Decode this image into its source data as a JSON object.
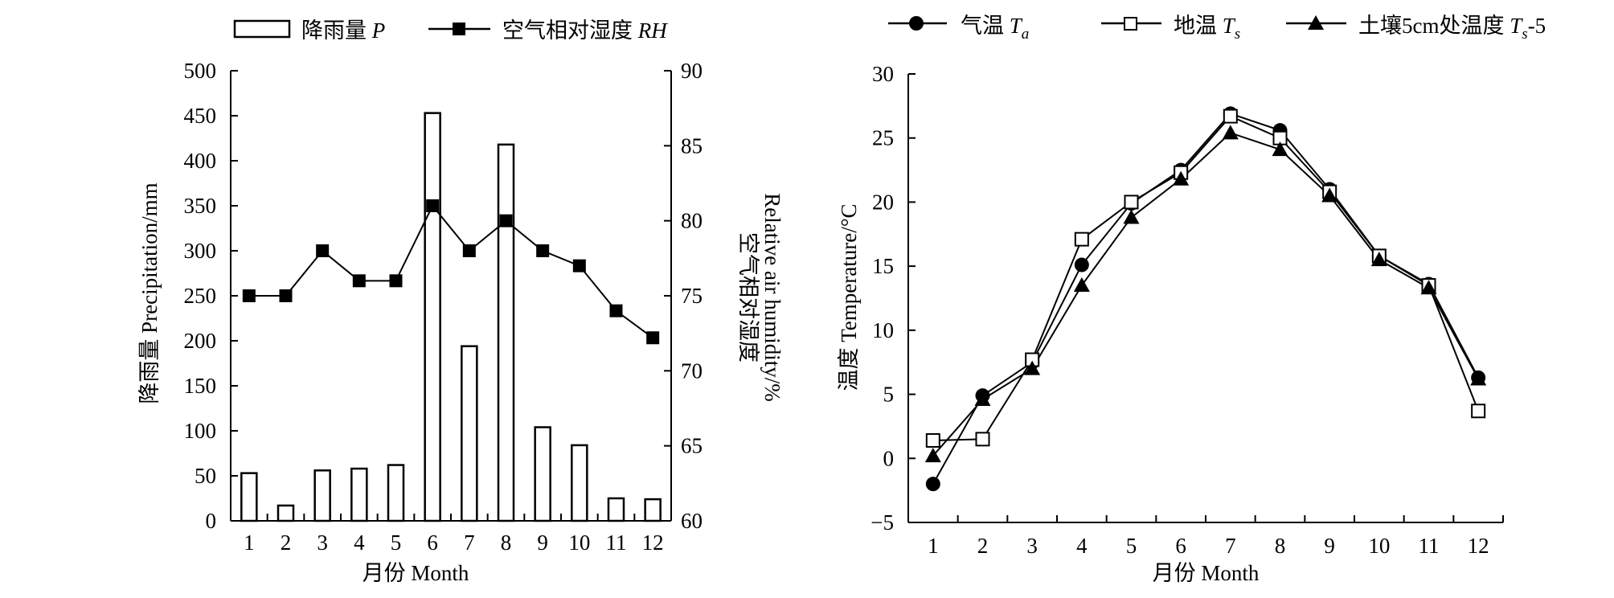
{
  "chart_data": [
    {
      "type": "bar",
      "x": [
        1,
        2,
        3,
        4,
        5,
        6,
        7,
        8,
        9,
        10,
        11,
        12
      ],
      "xlabel": "月份 Month",
      "ylabel": "降雨量 Precipitation/mm",
      "y2label_zh": "空气相对湿度",
      "y2label_en": "Relative air humidity/%",
      "ylim": [
        0,
        500
      ],
      "yticks": [
        0,
        50,
        100,
        150,
        200,
        250,
        300,
        350,
        400,
        450,
        500
      ],
      "y2lim": [
        60,
        90
      ],
      "y2ticks": [
        60,
        65,
        70,
        75,
        80,
        85,
        90
      ],
      "legend_placement": "top",
      "series": [
        {
          "name_main": "降雨量",
          "name_sym": "P",
          "type": "bar",
          "axis": "left",
          "values": [
            53,
            17,
            56,
            58,
            62,
            453,
            194,
            418,
            104,
            84,
            25,
            24
          ]
        },
        {
          "name_main": "空气相对湿度",
          "name_sym": "RH",
          "type": "line",
          "axis": "right",
          "marker": "square-filled",
          "values": [
            75,
            75,
            78,
            76,
            76,
            81,
            78,
            80,
            78,
            77,
            74,
            72.2
          ]
        }
      ]
    },
    {
      "type": "line",
      "x": [
        1,
        2,
        3,
        4,
        5,
        6,
        7,
        8,
        9,
        10,
        11,
        12
      ],
      "xlabel": "月份 Month",
      "ylabel": "温度 Temperature/°C",
      "ylim": [
        -5,
        30
      ],
      "yticks": [
        -5,
        0,
        5,
        10,
        15,
        20,
        25,
        30
      ],
      "legend_placement": "top",
      "series": [
        {
          "name_main": "气温",
          "name_sym": "T",
          "name_sub": "a",
          "name_post": "",
          "marker": "circle-filled",
          "values": [
            -2.0,
            4.9,
            7.5,
            15.1,
            19.9,
            22.5,
            26.9,
            25.6,
            21.0,
            15.8,
            13.6,
            6.3
          ]
        },
        {
          "name_main": "地温",
          "name_sym": "T",
          "name_sub": "s",
          "name_post": "",
          "marker": "square-open",
          "values": [
            1.4,
            1.5,
            7.7,
            17.1,
            20.0,
            22.3,
            26.7,
            25.0,
            20.8,
            15.8,
            13.5,
            3.7
          ]
        },
        {
          "name_main": "土壤5cm处温度",
          "name_sym": "T",
          "name_sub": "s",
          "name_post": "-5",
          "marker": "triangle-filled",
          "values": [
            0.2,
            4.6,
            7.0,
            13.5,
            18.8,
            21.8,
            25.4,
            24.1,
            20.5,
            15.5,
            13.3,
            6.2
          ]
        }
      ]
    }
  ]
}
